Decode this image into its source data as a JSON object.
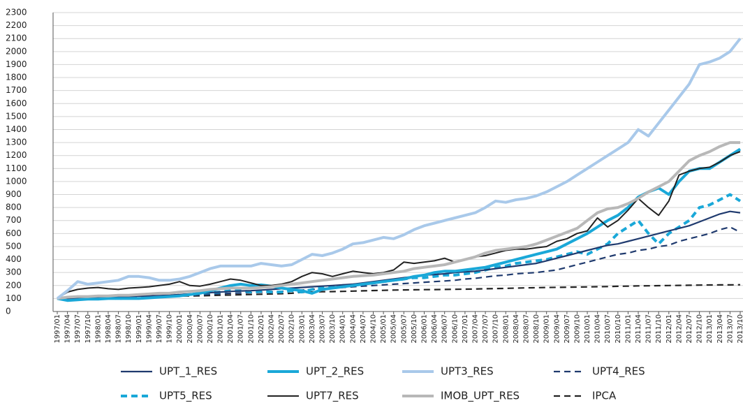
{
  "chart_data": {
    "type": "line",
    "categories": [
      "1997/01",
      "1997/04",
      "1997/07",
      "1997/10",
      "1998/01",
      "1998/04",
      "1998/07",
      "1998/10",
      "1999/01",
      "1999/04",
      "1999/07",
      "1999/10",
      "2000/01",
      "2000/04",
      "2000/07",
      "2000/10",
      "2001/01",
      "2001/04",
      "2001/07",
      "2001/10",
      "2002/01",
      "2002/04",
      "2002/07",
      "2002/10",
      "2003/01",
      "2003/04",
      "2003/07",
      "2003/10",
      "2004/01",
      "2004/04",
      "2004/07",
      "2004/10",
      "2005/01",
      "2005/04",
      "2005/07",
      "2005/10",
      "2006/01",
      "2006/04",
      "2006/07",
      "2006/10",
      "2007/01",
      "2007/04",
      "2007/07",
      "2007/10",
      "2008/01",
      "2008/04",
      "2008/07",
      "2008/10",
      "2009/01",
      "2009/04",
      "2009/07",
      "2009/10",
      "2010/01",
      "2010/04",
      "2010/07",
      "2010/10",
      "2011/01",
      "2011/04",
      "2011/07",
      "2011/10",
      "2012/01",
      "2012/04",
      "2012/07",
      "2012/10",
      "2013/01",
      "2013/04",
      "2013/07",
      "2013/10"
    ],
    "series": [
      {
        "name": "UPT_1_RES",
        "color": "#1f3a6e",
        "line_style": "solid",
        "weight": "medium",
        "values": [
          100,
          100,
          105,
          108,
          110,
          112,
          114,
          116,
          118,
          120,
          122,
          125,
          130,
          135,
          140,
          145,
          150,
          155,
          158,
          160,
          165,
          170,
          175,
          180,
          185,
          190,
          195,
          200,
          205,
          210,
          220,
          230,
          240,
          250,
          260,
          270,
          280,
          285,
          290,
          300,
          305,
          310,
          320,
          330,
          340,
          350,
          360,
          370,
          390,
          410,
          430,
          450,
          470,
          490,
          510,
          520,
          540,
          560,
          580,
          600,
          620,
          640,
          660,
          690,
          720,
          750,
          770,
          760
        ]
      },
      {
        "name": "UPT_2_RES",
        "color": "#1aa8d8",
        "line_style": "solid",
        "weight": "thick",
        "values": [
          100,
          85,
          90,
          95,
          95,
          100,
          100,
          100,
          100,
          105,
          110,
          115,
          120,
          130,
          140,
          160,
          180,
          200,
          210,
          200,
          205,
          195,
          180,
          170,
          160,
          140,
          170,
          180,
          190,
          200,
          210,
          220,
          230,
          240,
          250,
          270,
          280,
          300,
          310,
          310,
          320,
          330,
          340,
          360,
          380,
          400,
          420,
          440,
          460,
          480,
          520,
          560,
          600,
          650,
          700,
          740,
          800,
          880,
          920,
          950,
          900,
          1000,
          1080,
          1100,
          1100,
          1150,
          1200,
          1250
        ]
      },
      {
        "name": "UPT3_RES",
        "color": "#a9c9ea",
        "line_style": "solid",
        "weight": "thick",
        "values": [
          100,
          160,
          230,
          210,
          220,
          230,
          240,
          270,
          270,
          260,
          240,
          240,
          250,
          270,
          300,
          330,
          350,
          350,
          350,
          350,
          370,
          360,
          350,
          360,
          400,
          440,
          430,
          450,
          480,
          520,
          530,
          550,
          570,
          560,
          590,
          630,
          660,
          680,
          700,
          720,
          740,
          760,
          800,
          850,
          840,
          860,
          870,
          890,
          920,
          960,
          1000,
          1050,
          1100,
          1150,
          1200,
          1250,
          1300,
          1400,
          1350,
          1450,
          1550,
          1650,
          1750,
          1900,
          1920,
          1950,
          2000,
          2100
        ]
      },
      {
        "name": "UPT4_RES",
        "color": "#1f3a6e",
        "line_style": "dashed",
        "weight": "medium",
        "values": [
          100,
          100,
          102,
          104,
          105,
          107,
          108,
          110,
          112,
          114,
          116,
          118,
          120,
          124,
          128,
          132,
          136,
          140,
          142,
          145,
          148,
          150,
          155,
          160,
          165,
          170,
          175,
          180,
          185,
          190,
          195,
          200,
          205,
          210,
          215,
          220,
          225,
          230,
          235,
          240,
          250,
          255,
          265,
          275,
          280,
          290,
          295,
          300,
          310,
          320,
          340,
          360,
          380,
          400,
          420,
          440,
          450,
          470,
          480,
          500,
          510,
          540,
          560,
          580,
          600,
          630,
          650,
          610
        ]
      },
      {
        "name": "UPT5_RES",
        "color": "#1aa8d8",
        "line_style": "dashed",
        "weight": "thick",
        "values": [
          100,
          95,
          100,
          100,
          100,
          105,
          100,
          105,
          110,
          110,
          115,
          120,
          125,
          130,
          140,
          145,
          150,
          160,
          160,
          150,
          155,
          150,
          150,
          160,
          150,
          170,
          180,
          190,
          200,
          200,
          210,
          220,
          230,
          240,
          250,
          260,
          260,
          270,
          280,
          280,
          290,
          300,
          320,
          340,
          350,
          370,
          380,
          390,
          400,
          420,
          440,
          460,
          440,
          480,
          520,
          600,
          650,
          700,
          600,
          520,
          600,
          650,
          700,
          800,
          820,
          860,
          900,
          850
        ]
      },
      {
        "name": "UPT7_RES",
        "color": "#222222",
        "line_style": "solid",
        "weight": "thin",
        "values": [
          100,
          150,
          170,
          180,
          185,
          175,
          170,
          180,
          185,
          190,
          200,
          210,
          230,
          200,
          195,
          210,
          230,
          250,
          240,
          220,
          200,
          200,
          210,
          230,
          270,
          300,
          290,
          270,
          290,
          310,
          300,
          290,
          300,
          320,
          380,
          370,
          380,
          390,
          410,
          380,
          400,
          420,
          430,
          450,
          470,
          480,
          480,
          490,
          500,
          540,
          560,
          600,
          620,
          720,
          650,
          700,
          780,
          870,
          800,
          740,
          850,
          1050,
          1080,
          1100,
          1110,
          1150,
          1200,
          1230
        ]
      },
      {
        "name": "IMOB_UPT_RES",
        "color": "#b8b8b8",
        "line_style": "solid",
        "weight": "thick",
        "values": [
          100,
          110,
          115,
          115,
          120,
          120,
          125,
          125,
          130,
          135,
          140,
          140,
          150,
          155,
          160,
          170,
          175,
          180,
          180,
          180,
          185,
          190,
          200,
          210,
          220,
          230,
          240,
          250,
          260,
          270,
          275,
          280,
          290,
          300,
          310,
          330,
          340,
          350,
          360,
          380,
          400,
          420,
          450,
          470,
          480,
          490,
          500,
          520,
          550,
          580,
          610,
          640,
          700,
          760,
          790,
          800,
          830,
          870,
          920,
          960,
          1000,
          1080,
          1160,
          1200,
          1230,
          1270,
          1300,
          1300
        ]
      },
      {
        "name": "IPCA",
        "color": "#222222",
        "line_style": "dashed",
        "weight": "medium",
        "values": [
          100,
          102,
          104,
          105,
          106,
          107,
          107,
          108,
          110,
          113,
          115,
          117,
          119,
          120,
          121,
          123,
          125,
          127,
          129,
          131,
          133,
          135,
          137,
          140,
          147,
          150,
          152,
          153,
          155,
          157,
          159,
          161,
          163,
          165,
          166,
          167,
          168,
          169,
          170,
          171,
          172,
          173,
          175,
          176,
          178,
          180,
          182,
          183,
          185,
          186,
          187,
          188,
          189,
          191,
          192,
          194,
          195,
          197,
          198,
          199,
          200,
          201,
          202,
          203,
          204,
          205,
          205,
          206
        ]
      }
    ],
    "ylim": [
      0,
      2300
    ],
    "yticks": [
      0,
      100,
      200,
      300,
      400,
      500,
      600,
      700,
      800,
      900,
      1000,
      1100,
      1200,
      1300,
      1400,
      1500,
      1600,
      1700,
      1800,
      1900,
      2000,
      2100,
      2200,
      2300
    ],
    "grid": true
  }
}
